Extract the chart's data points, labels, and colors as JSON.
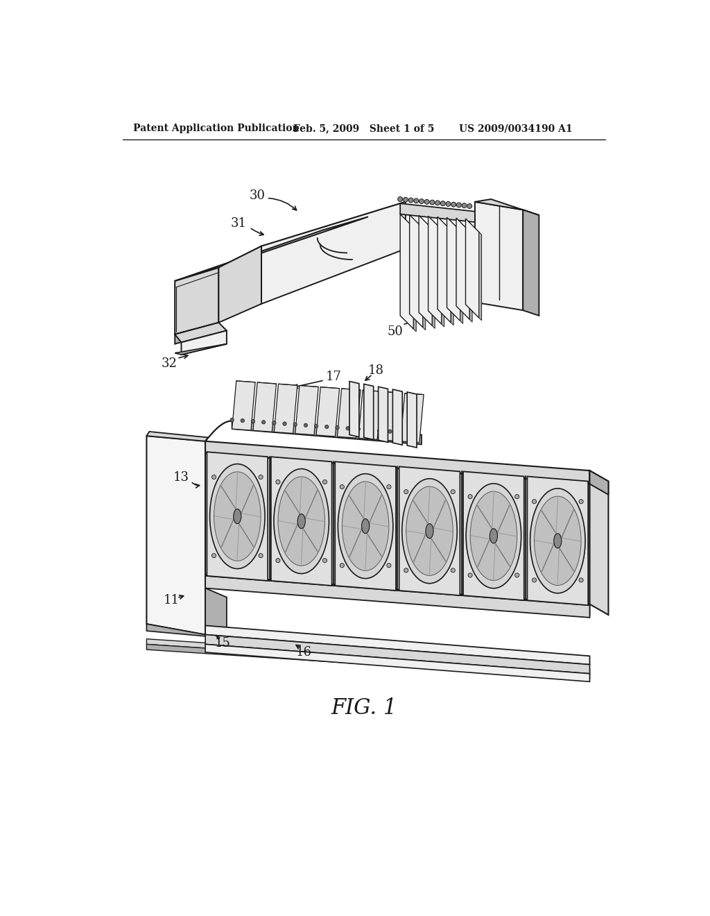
{
  "header_left": "Patent Application Publication",
  "header_mid": "Feb. 5, 2009   Sheet 1 of 5",
  "header_right": "US 2009/0034190 A1",
  "fig_label": "FIG. 1",
  "bg_color": "#ffffff",
  "lc": "#1a1a1a",
  "face_light": "#f0f0f0",
  "face_mid": "#d8d8d8",
  "face_dark": "#b0b0b0",
  "face_white": "#ffffff"
}
